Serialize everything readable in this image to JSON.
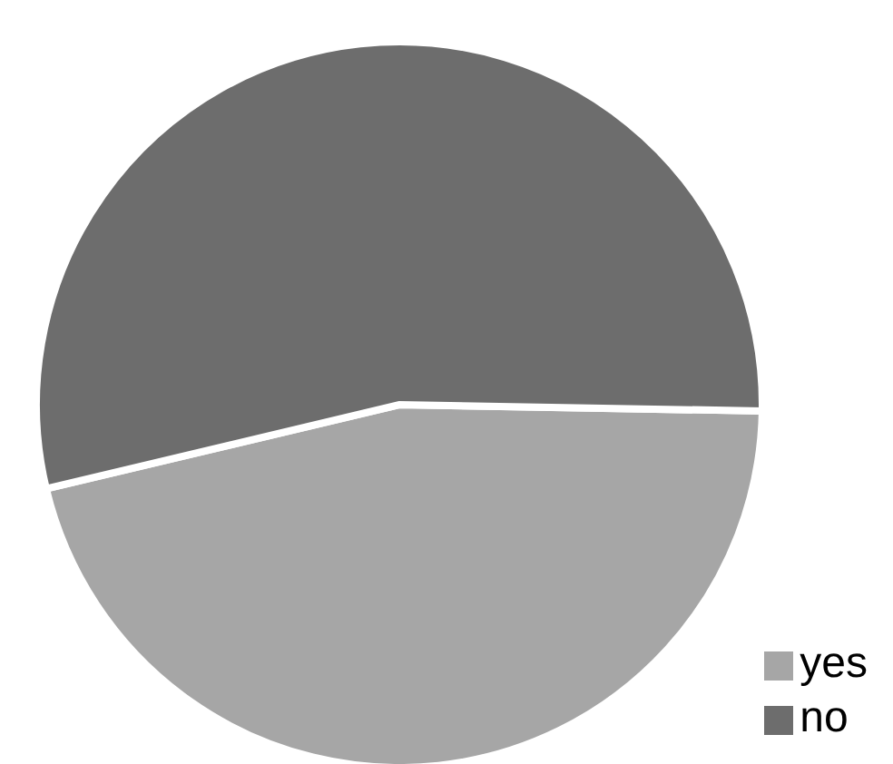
{
  "chart_data": {
    "type": "pie",
    "categories": [
      "yes",
      "no"
    ],
    "values": [
      46,
      54
    ],
    "colors": [
      "#a6a6a6",
      "#6d6d6d"
    ],
    "legend": "bottom right"
  }
}
